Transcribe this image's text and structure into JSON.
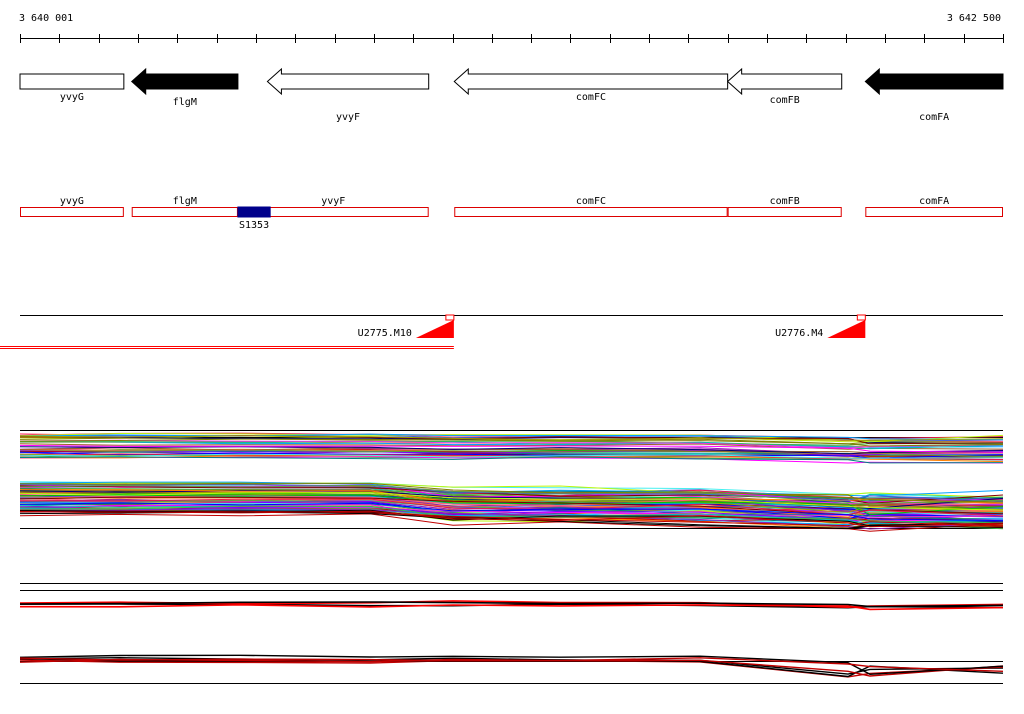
{
  "coordinates": {
    "start": "3 640 001",
    "end": "3 642 500"
  },
  "genome_range": [
    3640001,
    3642500
  ],
  "colors": {
    "gene_forward": "#ffffff",
    "gene_reverse": "#000000",
    "segment_border": "#dd0000",
    "feature_fill": "#00008b",
    "marker_red": "#ff0000"
  },
  "genes": [
    {
      "name": "yvyG",
      "start": 3640001,
      "end": 3640265,
      "strand": "+",
      "fill": "white"
    },
    {
      "name": "flgM",
      "start": 3640285,
      "end": 3640555,
      "strand": "-",
      "fill": "black"
    },
    {
      "name": "yvyF",
      "start": 3640630,
      "end": 3641040,
      "strand": "-",
      "fill": "white"
    },
    {
      "name": "comFC",
      "start": 3641105,
      "end": 3641800,
      "strand": "-",
      "fill": "white"
    },
    {
      "name": "comFB",
      "start": 3641800,
      "end": 3642090,
      "strand": "-",
      "fill": "white"
    },
    {
      "name": "comFA",
      "start": 3642150,
      "end": 3642500,
      "strand": "-",
      "fill": "black"
    }
  ],
  "segments": [
    {
      "name": "yvyG",
      "start": 3640001,
      "end": 3640265
    },
    {
      "name": "flgM",
      "start": 3640285,
      "end": 3640555
    },
    {
      "name": "yvyF",
      "start": 3640555,
      "end": 3641040
    },
    {
      "name": "comFC",
      "start": 3641105,
      "end": 3641800
    },
    {
      "name": "comFB",
      "start": 3641800,
      "end": 3642090
    },
    {
      "name": "comFA",
      "start": 3642150,
      "end": 3642500
    }
  ],
  "features": [
    {
      "name": "S1353",
      "start": 3640555,
      "end": 3640637
    }
  ],
  "markers": [
    {
      "name": "U2775.M10",
      "position": 3641104
    },
    {
      "name": "U2776.M4",
      "position": 3642150
    }
  ]
}
